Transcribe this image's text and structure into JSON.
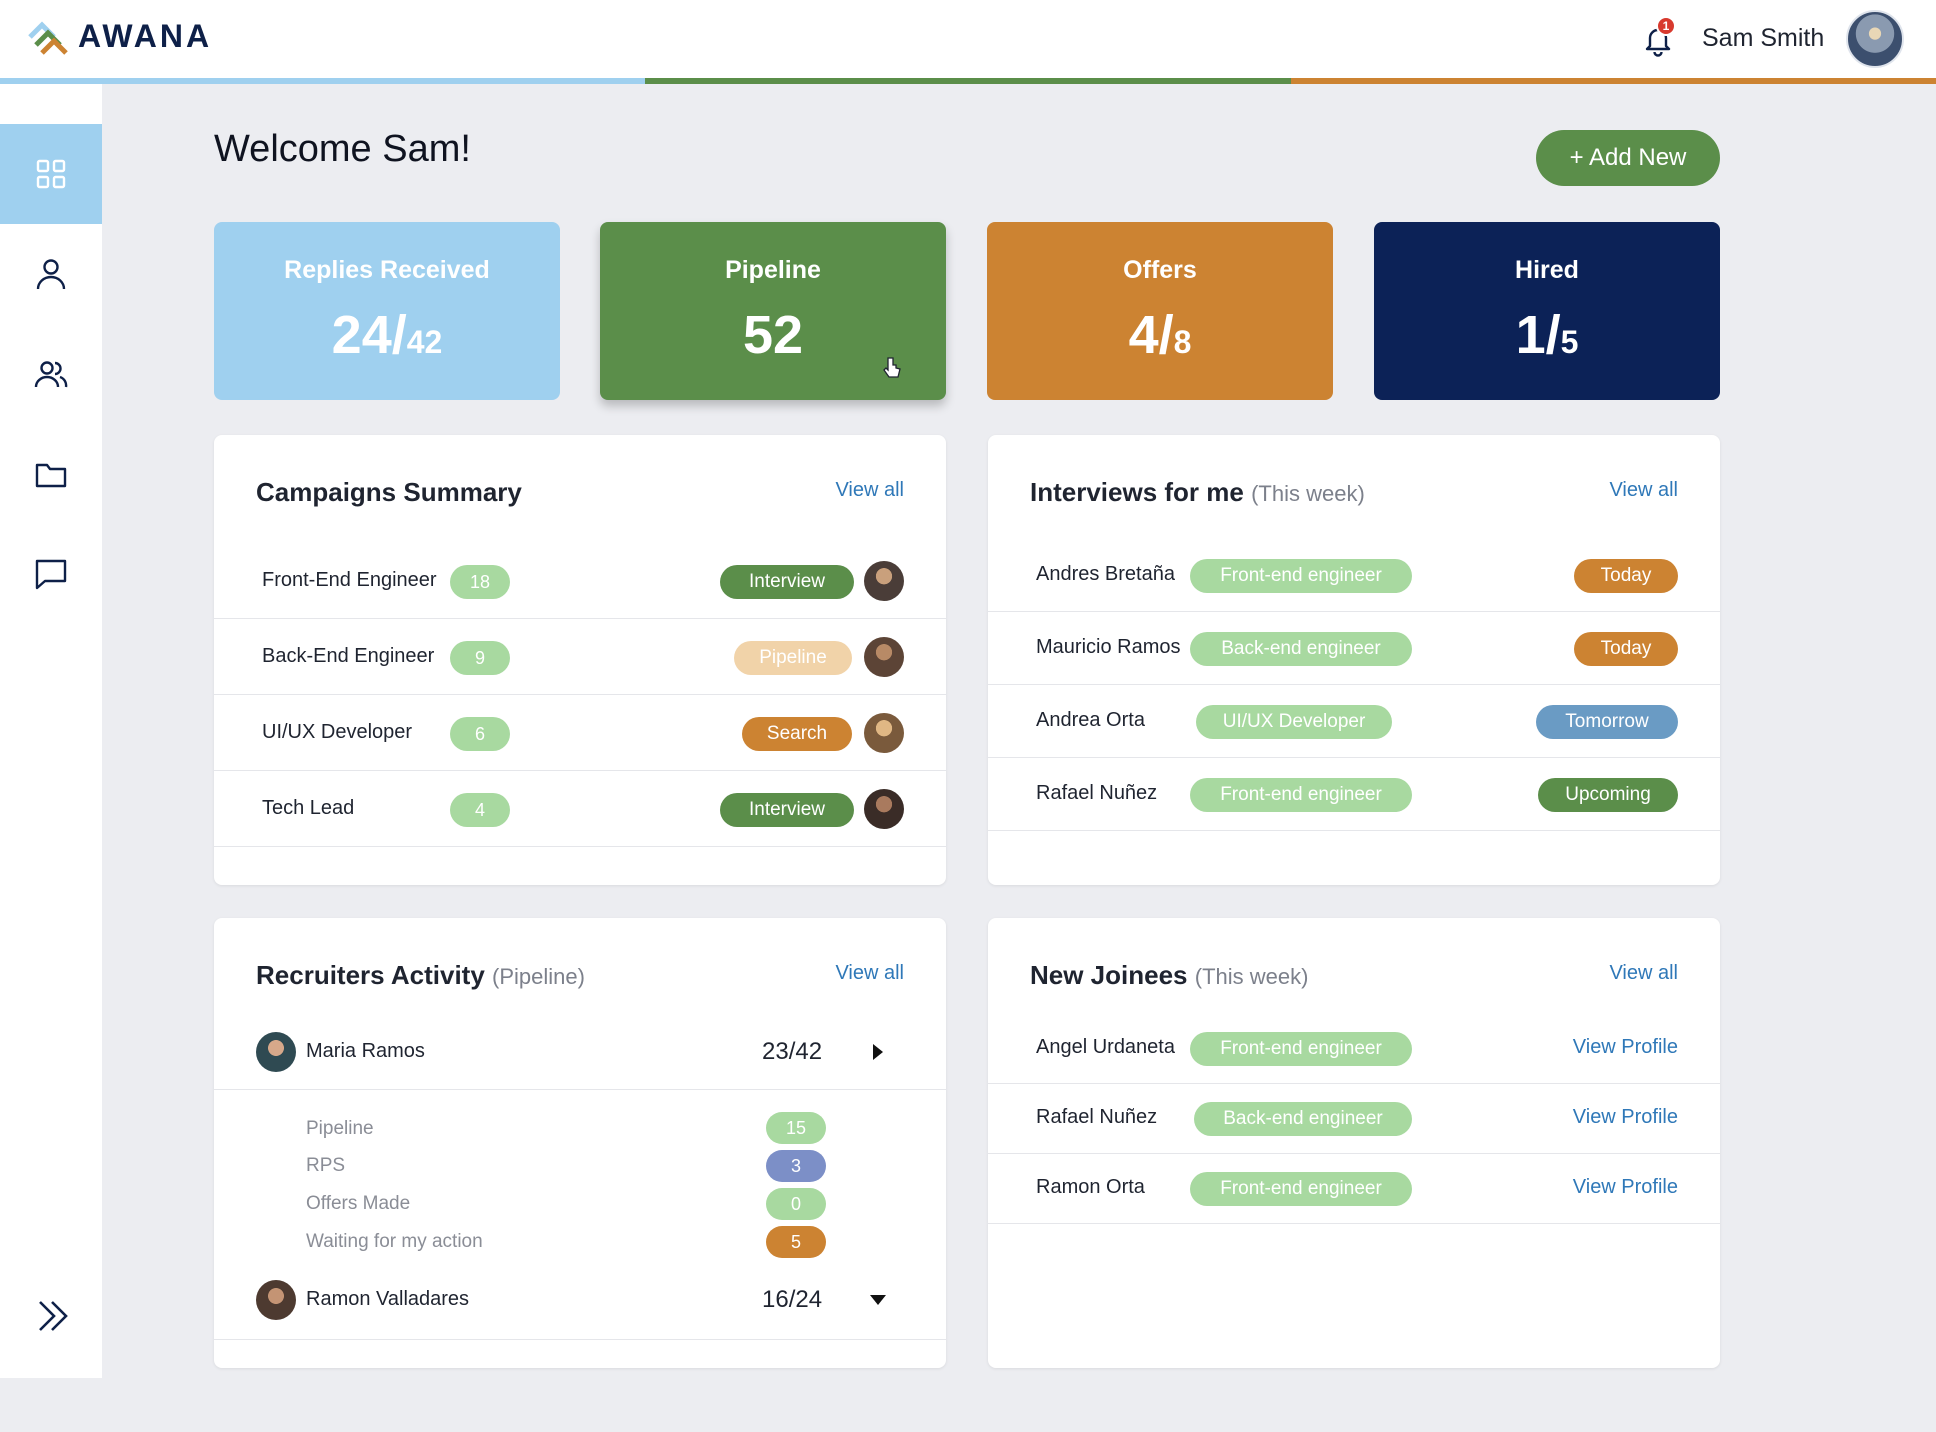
{
  "app": {
    "logo_text": "AWANA"
  },
  "header": {
    "notification_count": "1",
    "user_name": "Sam Smith"
  },
  "colors": {
    "blue": "#9fd0ef",
    "green": "#5b8e4a",
    "orange": "#cc8332",
    "navy": "#0c2257",
    "light_green": "#a8d9a0",
    "badge_red": "#d83a2e"
  },
  "sidebar": {
    "items": [
      {
        "icon": "grid-icon",
        "active": true
      },
      {
        "icon": "user-icon",
        "active": false
      },
      {
        "icon": "users-icon",
        "active": false
      },
      {
        "icon": "folder-icon",
        "active": false
      },
      {
        "icon": "chat-icon",
        "active": false
      }
    ],
    "expand_icon": "double-chevron-right-icon"
  },
  "main": {
    "welcome": "Welcome Sam!",
    "add_new": "+ Add New"
  },
  "stats": [
    {
      "label": "Replies Received",
      "value": "24/",
      "total": "42"
    },
    {
      "label": "Pipeline",
      "value": "52",
      "total": ""
    },
    {
      "label": "Offers",
      "value": "4/",
      "total": "8"
    },
    {
      "label": "Hired",
      "value": "1/",
      "total": "5"
    }
  ],
  "campaigns": {
    "title": "Campaigns Summary",
    "view_all": "View all",
    "rows": [
      {
        "name": "Front-End Engineer",
        "count": "18",
        "status": "Interview"
      },
      {
        "name": "Back-End Engineer",
        "count": "9",
        "status": "Pipeline"
      },
      {
        "name": "UI/UX Developer",
        "count": "6",
        "status": "Search"
      },
      {
        "name": "Tech Lead",
        "count": "4",
        "status": "Interview"
      }
    ]
  },
  "interviews": {
    "title": "Interviews for me",
    "subtitle": "(This week)",
    "view_all": "View all",
    "rows": [
      {
        "name": "Andres Bretaña",
        "role": "Front-end engineer",
        "when": "Today"
      },
      {
        "name": "Mauricio Ramos",
        "role": "Back-end engineer",
        "when": "Today"
      },
      {
        "name": "Andrea Orta",
        "role": "UI/UX Developer",
        "when": "Tomorrow"
      },
      {
        "name": "Rafael Nuñez",
        "role": "Front-end engineer",
        "when": "Upcoming"
      }
    ]
  },
  "recruiters": {
    "title": "Recruiters Activity",
    "subtitle": "(Pipeline)",
    "view_all": "View all",
    "people": [
      {
        "name": "Maria Ramos",
        "score": "23/42",
        "details": [
          {
            "label": "Pipeline",
            "value": "15"
          },
          {
            "label": "RPS",
            "value": "3"
          },
          {
            "label": "Offers Made",
            "value": "0"
          },
          {
            "label": "Waiting for my action",
            "value": "5"
          }
        ]
      },
      {
        "name": "Ramon Valladares",
        "score": "16/24"
      }
    ]
  },
  "joinees": {
    "title": "New Joinees",
    "subtitle": "(This week)",
    "view_all": "View all",
    "rows": [
      {
        "name": "Angel Urdaneta",
        "role": "Front-end engineer",
        "link": "View Profile"
      },
      {
        "name": "Rafael Nuñez",
        "role": "Back-end engineer",
        "link": "View Profile"
      },
      {
        "name": "Ramon Orta",
        "role": "Front-end engineer",
        "link": "View Profile"
      }
    ]
  }
}
